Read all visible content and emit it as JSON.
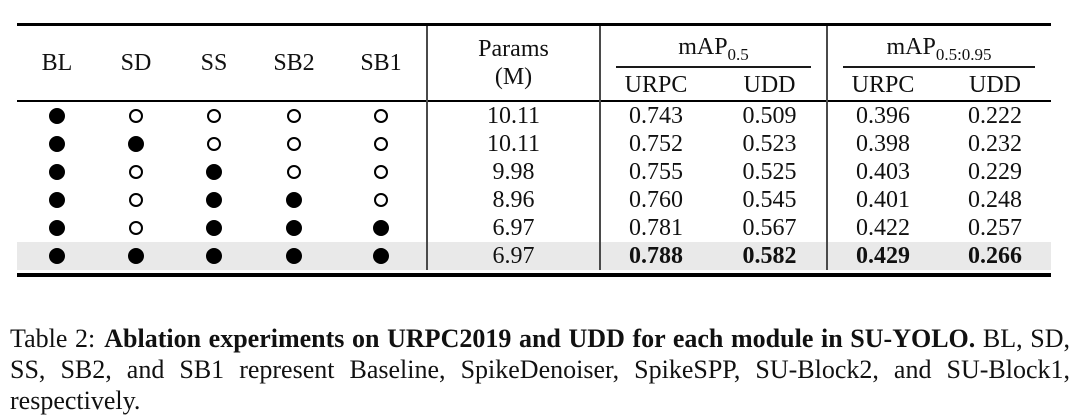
{
  "table": {
    "module_columns": [
      "BL",
      "SD",
      "SS",
      "SB2",
      "SB1"
    ],
    "params_header": {
      "line1": "Params",
      "line2": "(M)"
    },
    "groups": [
      {
        "name": "mAP",
        "subscript": "0.5",
        "sub_columns": [
          "URPC",
          "UDD"
        ]
      },
      {
        "name": "mAP",
        "subscript": "0.5:0.95",
        "sub_columns": [
          "URPC",
          "UDD"
        ]
      }
    ],
    "rows": [
      {
        "modules": [
          true,
          false,
          false,
          false,
          false
        ],
        "params": "10.11",
        "values": [
          "0.743",
          "0.509",
          "0.396",
          "0.222"
        ],
        "highlight": false
      },
      {
        "modules": [
          true,
          true,
          false,
          false,
          false
        ],
        "params": "10.11",
        "values": [
          "0.752",
          "0.523",
          "0.398",
          "0.232"
        ],
        "highlight": false
      },
      {
        "modules": [
          true,
          false,
          true,
          false,
          false
        ],
        "params": "9.98",
        "values": [
          "0.755",
          "0.525",
          "0.403",
          "0.229"
        ],
        "highlight": false
      },
      {
        "modules": [
          true,
          false,
          true,
          true,
          false
        ],
        "params": "8.96",
        "values": [
          "0.760",
          "0.545",
          "0.401",
          "0.248"
        ],
        "highlight": false
      },
      {
        "modules": [
          true,
          false,
          true,
          true,
          true
        ],
        "params": "6.97",
        "values": [
          "0.781",
          "0.567",
          "0.422",
          "0.257"
        ],
        "highlight": false
      },
      {
        "modules": [
          true,
          true,
          true,
          true,
          true
        ],
        "params": "6.97",
        "values": [
          "0.788",
          "0.582",
          "0.429",
          "0.266"
        ],
        "highlight": true
      }
    ]
  },
  "caption": {
    "prefix": "Table 2:",
    "bold_text": "Ablation experiments on URPC2019 and UDD for each module in SU-YOLO.",
    "normal_text": "BL, SD, SS, SB2, and SB1 represent Baseline, SpikeDenoiser, SpikeSPP, SU-Block2, and SU-Block1, respectively."
  },
  "colors": {
    "highlight_row": "#e9e9e9",
    "rule": "#000000",
    "vertical_rule": "#4a4a4a"
  }
}
